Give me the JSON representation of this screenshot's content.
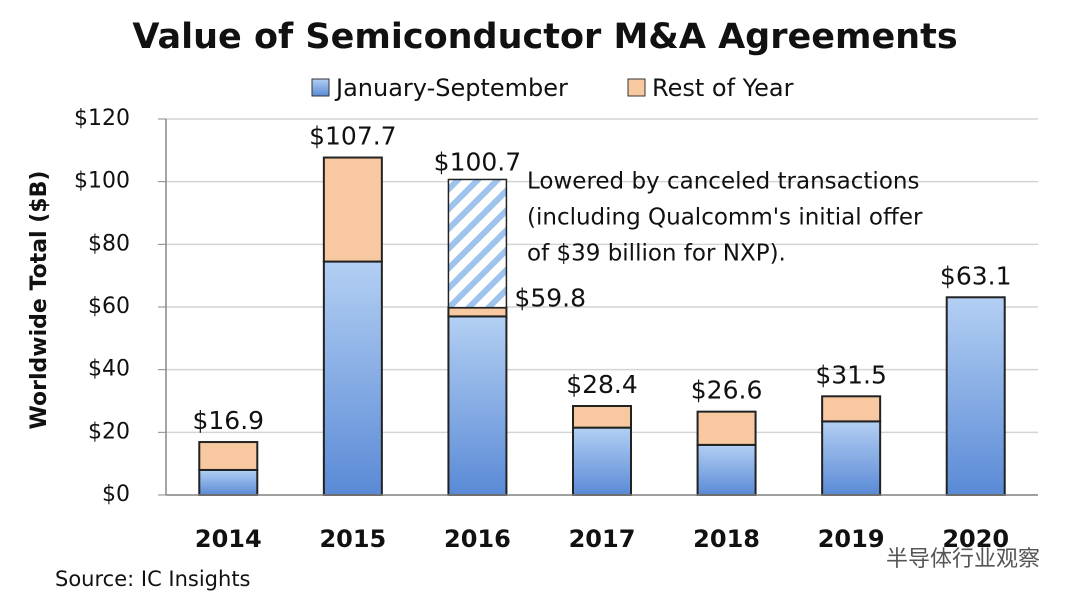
{
  "chart_data": {
    "type": "stacked_bar",
    "title": "Value of Semiconductor M&A Agreements",
    "y_axis_label": "Worldwide Total ($B)",
    "categories": [
      "2014",
      "2015",
      "2016",
      "2017",
      "2018",
      "2019",
      "2020"
    ],
    "series": [
      {
        "name": "January-September",
        "color": "#6b9be0",
        "values": [
          8,
          74.5,
          57,
          21.5,
          16,
          23.5,
          63.1
        ]
      },
      {
        "name": "Rest of Year",
        "color": "#f8c9a0",
        "values": [
          8.9,
          33.2,
          2.8,
          6.9,
          10.6,
          8,
          null
        ]
      }
    ],
    "totals": [
      16.9,
      107.7,
      59.8,
      28.4,
      26.6,
      31.5,
      63.1
    ],
    "total_labels": [
      "$16.9",
      "$107.7",
      "$59.8",
      "$28.4",
      "$26.6",
      "$31.5",
      "$63.1"
    ],
    "canceled_total": 100.7,
    "canceled_total_label": "$100.7",
    "annotation": [
      "Lowered by canceled transactions",
      "(including Qualcomm's initial offer",
      "of $39 billion for NXP)."
    ],
    "ylim": [
      0,
      120
    ],
    "yticks": [
      {
        "value": 0,
        "label": "$0"
      },
      {
        "value": 20,
        "label": "$20"
      },
      {
        "value": 40,
        "label": "$40"
      },
      {
        "value": 60,
        "label": "$60"
      },
      {
        "value": 80,
        "label": "$80"
      },
      {
        "value": 100,
        "label": "$100"
      },
      {
        "value": 120,
        "label": "$120"
      }
    ],
    "grid": true,
    "source": "Source: IC Insights",
    "watermark": "半导体行业观察"
  }
}
